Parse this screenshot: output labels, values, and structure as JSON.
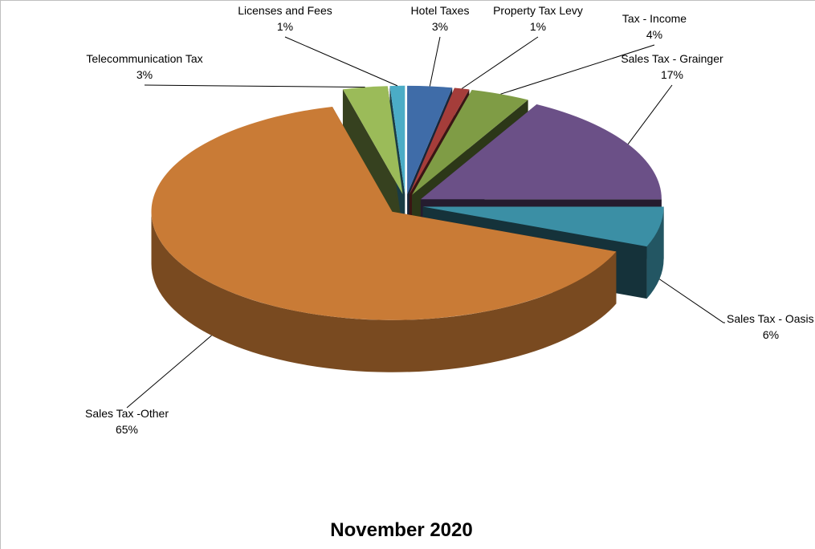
{
  "chart_data": {
    "type": "pie",
    "title": "November 2020",
    "categories": [
      "Hotel Taxes",
      "Property Tax Levy",
      "Tax - Income",
      "Sales Tax - Grainger",
      "Sales Tax - Oasis",
      "Sales Tax -Other",
      "Telecommunication Tax",
      "Licenses and Fees"
    ],
    "values": [
      3,
      1,
      4,
      17,
      6,
      65,
      3,
      1
    ],
    "value_labels": [
      "3%",
      "1%",
      "4%",
      "17%",
      "6%",
      "65%",
      "3%",
      "1%"
    ],
    "colors": [
      "#3f6ca8",
      "#a53d3a",
      "#7f9c45",
      "#6b5087",
      "#3b8fa5",
      "#c97b36",
      "#9bbb59",
      "#4bacc6"
    ]
  }
}
